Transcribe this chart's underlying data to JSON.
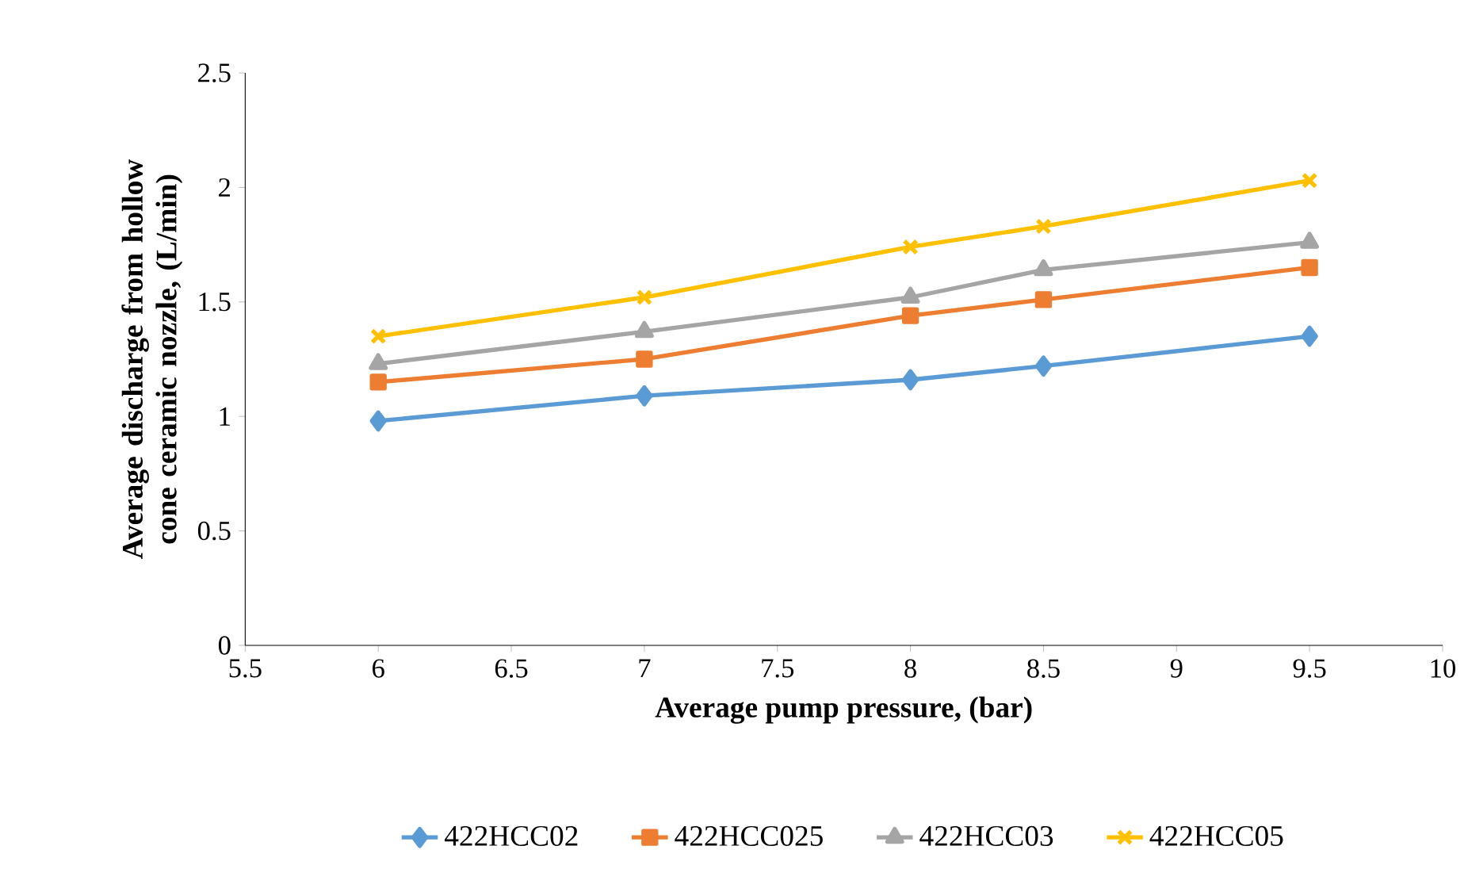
{
  "chart_data": {
    "type": "line",
    "xlabel": "Average pump pressure, (bar)",
    "ylabel": "Average discharge from hollow cone ceramic nozzle, (L/min)",
    "x": [
      6,
      7,
      8,
      8.5,
      9.5
    ],
    "series": [
      {
        "name": "422HCC02",
        "color": "#5b9bd5",
        "marker": "diamond",
        "values": [
          0.98,
          1.09,
          1.16,
          1.22,
          1.35
        ]
      },
      {
        "name": "422HCC025",
        "color": "#ed7d31",
        "marker": "square",
        "values": [
          1.15,
          1.25,
          1.44,
          1.51,
          1.65
        ]
      },
      {
        "name": "422HCC03",
        "color": "#a5a5a5",
        "marker": "triangle",
        "values": [
          1.23,
          1.37,
          1.52,
          1.64,
          1.76
        ]
      },
      {
        "name": "422HCC05",
        "color": "#ffc000",
        "marker": "cross",
        "values": [
          1.35,
          1.52,
          1.74,
          1.83,
          2.03
        ]
      }
    ],
    "xlim": [
      5.5,
      10
    ],
    "xticks": [
      5.5,
      6,
      6.5,
      7,
      7.5,
      8,
      8.5,
      9,
      9.5,
      10
    ],
    "ylim": [
      0,
      2.5
    ],
    "yticks": [
      0,
      0.5,
      1,
      1.5,
      2,
      2.5
    ],
    "grid": false,
    "legend": "bottom",
    "line_style": "solid"
  }
}
